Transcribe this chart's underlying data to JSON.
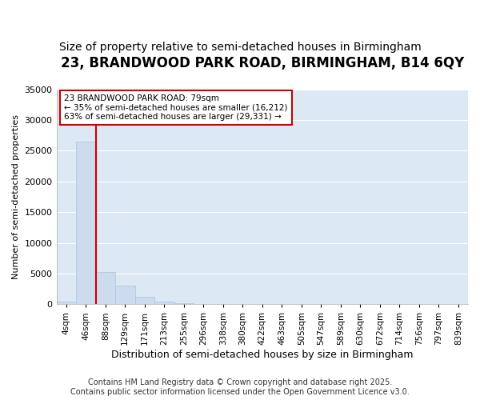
{
  "title1": "23, BRANDWOOD PARK ROAD, BIRMINGHAM, B14 6QY",
  "title2": "Size of property relative to semi-detached houses in Birmingham",
  "xlabel": "Distribution of semi-detached houses by size in Birmingham",
  "ylabel": "Number of semi-detached properties",
  "categories": [
    "4sqm",
    "46sqm",
    "88sqm",
    "129sqm",
    "171sqm",
    "213sqm",
    "255sqm",
    "296sqm",
    "338sqm",
    "380sqm",
    "422sqm",
    "463sqm",
    "505sqm",
    "547sqm",
    "589sqm",
    "630sqm",
    "672sqm",
    "714sqm",
    "756sqm",
    "797sqm",
    "839sqm"
  ],
  "values": [
    400,
    26500,
    5200,
    3100,
    1200,
    400,
    200,
    30,
    0,
    0,
    0,
    0,
    0,
    0,
    0,
    0,
    0,
    0,
    0,
    0,
    0
  ],
  "bar_color": "#ccdcee",
  "bar_edge_color": "#a8c4dc",
  "vline_x": 2.0,
  "vline_color": "#cc0000",
  "annotation_text": "23 BRANDWOOD PARK ROAD: 79sqm\n← 35% of semi-detached houses are smaller (16,212)\n63% of semi-detached houses are larger (29,331) →",
  "annotation_box_color": "#ffffff",
  "annotation_box_edge": "#cc0000",
  "ylim": [
    0,
    35000
  ],
  "yticks": [
    0,
    5000,
    10000,
    15000,
    20000,
    25000,
    30000,
    35000
  ],
  "fig_background_color": "#ffffff",
  "plot_background": "#dce8f4",
  "grid_color": "#ffffff",
  "title1_fontsize": 12,
  "title2_fontsize": 10,
  "footer_text": "Contains HM Land Registry data © Crown copyright and database right 2025.\nContains public sector information licensed under the Open Government Licence v3.0.",
  "footer_fontsize": 7
}
